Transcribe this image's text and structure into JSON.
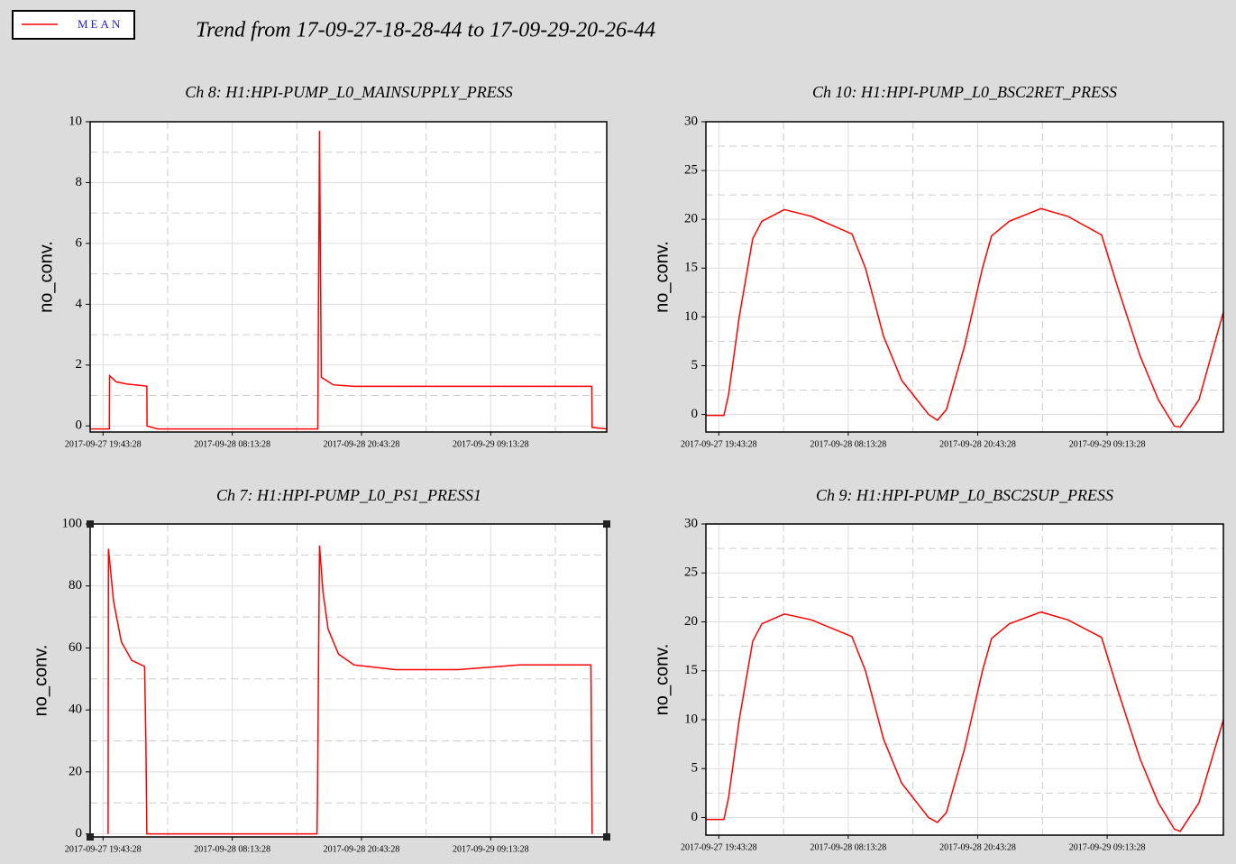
{
  "title": "Trend from 17-09-27-18-28-44 to 17-09-29-20-26-44",
  "chart_data": [
    {
      "type": "line",
      "title": "Ch 8: H1:HPI-PUMP_L0_MAINSUPPLY_PRESS",
      "y_label": "no_conv.",
      "x": [
        "2017-09-27 18:28:44",
        "2017-09-27 20:20:00",
        "2017-09-27 20:22:00",
        "2017-09-27 21:00:00",
        "2017-09-27 22:00:00",
        "2017-09-27 23:40:00",
        "2017-09-27 23:58:00",
        "2017-09-27 23:59:00",
        "2017-09-28 01:00:00",
        "2017-09-28 16:30:00",
        "2017-09-28 16:40:00",
        "2017-09-28 16:50:00",
        "2017-09-28 18:00:00",
        "2017-09-28 20:00:00",
        "2017-09-29 19:00:00",
        "2017-09-29 19:02:00",
        "2017-09-29 20:26:44"
      ],
      "series": [
        {
          "name": "MEAN",
          "color": "#ff0000",
          "values": [
            -0.1,
            -0.1,
            1.65,
            1.45,
            1.38,
            1.32,
            1.3,
            0,
            -0.1,
            -0.1,
            9.7,
            1.6,
            1.35,
            1.3,
            1.3,
            -0.05,
            -0.1
          ]
        }
      ],
      "xlim": [
        "2017-09-27 18:28:44",
        "2017-09-29 20:26:44"
      ],
      "xticks": [
        "2017-09-27 19:43:28",
        "2017-09-28 08:13:28",
        "2017-09-28 20:43:28",
        "2017-09-29 09:13:28"
      ],
      "ylim": [
        -0.2,
        10
      ],
      "yticks": [
        0,
        2,
        4,
        6,
        8,
        10
      ],
      "grid": true
    },
    {
      "type": "line",
      "title": "Ch 10: H1:HPI-PUMP_L0_BSC2RET_PRESS",
      "y_label": "no_conv.",
      "x": [
        "2017-09-27 18:28:44",
        "2017-09-27 20:13:00",
        "2017-09-27 20:40:00",
        "2017-09-27 21:42:00",
        "2017-09-27 23:00:00",
        "2017-09-27 23:53:00",
        "2017-09-28 02:03:00",
        "2017-09-28 04:40:00",
        "2017-09-28 08:35:00",
        "2017-09-28 09:53:00",
        "2017-09-28 11:38:00",
        "2017-09-28 13:23:00",
        "2017-09-28 15:59:00",
        "2017-09-28 16:50:00",
        "2017-09-28 17:42:00",
        "2017-09-28 19:27:00",
        "2017-09-28 21:11:00",
        "2017-09-28 22:04:00",
        "2017-09-28 23:47:00",
        "2017-09-29 02:50:00",
        "2017-09-29 05:26:00",
        "2017-09-29 08:41:00",
        "2017-09-29 10:15:00",
        "2017-09-29 12:24:00",
        "2017-09-29 14:10:00",
        "2017-09-29 15:43:00",
        "2017-09-29 16:17:00",
        "2017-09-29 18:05:00",
        "2017-09-29 20:26:44"
      ],
      "series": [
        {
          "name": "MEAN",
          "color": "#ff0000",
          "values": [
            -0.1,
            -0.1,
            2,
            10,
            18,
            19.8,
            21,
            20.3,
            18.5,
            15,
            8,
            3.5,
            0,
            -0.6,
            0.5,
            7,
            15,
            18.3,
            19.8,
            21.1,
            20.3,
            18.4,
            13,
            6,
            1.5,
            -1.2,
            -1.3,
            1.5,
            10.5
          ]
        }
      ],
      "xlim": [
        "2017-09-27 18:28:44",
        "2017-09-29 20:26:44"
      ],
      "xticks": [
        "2017-09-27 19:43:28",
        "2017-09-28 08:13:28",
        "2017-09-28 20:43:28",
        "2017-09-29 09:13:28"
      ],
      "ylim": [
        -1.8,
        30
      ],
      "yticks": [
        0,
        5,
        10,
        15,
        20,
        25,
        30
      ],
      "grid": true
    },
    {
      "type": "line",
      "title": "Ch 7: H1:HPI-PUMP_L0_PS1_PRESS1",
      "y_label": "no_conv.",
      "x": [
        "2017-09-27 20:13:00",
        "2017-09-27 20:15:00",
        "2017-09-27 20:45:00",
        "2017-09-27 21:30:00",
        "2017-09-27 22:30:00",
        "2017-09-27 23:45:00",
        "2017-09-27 23:52:00",
        "2017-09-27 23:58:00",
        "2017-09-28 16:25:00",
        "2017-09-28 16:28:00",
        "2017-09-28 16:40:00",
        "2017-09-28 17:00:00",
        "2017-09-28 17:30:00",
        "2017-09-28 18:30:00",
        "2017-09-28 20:00:00",
        "2017-09-29 00:00:00",
        "2017-09-29 06:00:00",
        "2017-09-29 12:00:00",
        "2017-09-29 18:55:00",
        "2017-09-29 19:02:00"
      ],
      "series": [
        {
          "name": "MEAN",
          "color": "#ff0000",
          "values": [
            0,
            92,
            75,
            62,
            56,
            54,
            30,
            0,
            0,
            10,
            93,
            78,
            66,
            58,
            54.5,
            53,
            53,
            54.5,
            54.5,
            0
          ]
        }
      ],
      "xlim": [
        "2017-09-27 18:28:44",
        "2017-09-29 20:26:44"
      ],
      "xticks": [
        "2017-09-27 19:43:28",
        "2017-09-28 08:13:28",
        "2017-09-28 20:43:28",
        "2017-09-29 09:13:28"
      ],
      "ylim": [
        -1,
        100
      ],
      "yticks": [
        0,
        20,
        40,
        60,
        80,
        100
      ],
      "grid": true
    },
    {
      "type": "line",
      "title": "Ch 9: H1:HPI-PUMP_L0_BSC2SUP_PRESS",
      "y_label": "no_conv.",
      "x": [
        "2017-09-27 18:28:44",
        "2017-09-27 20:13:00",
        "2017-09-27 20:40:00",
        "2017-09-27 21:42:00",
        "2017-09-27 23:00:00",
        "2017-09-27 23:53:00",
        "2017-09-28 02:03:00",
        "2017-09-28 04:40:00",
        "2017-09-28 08:35:00",
        "2017-09-28 09:53:00",
        "2017-09-28 11:38:00",
        "2017-09-28 13:23:00",
        "2017-09-28 15:59:00",
        "2017-09-28 16:50:00",
        "2017-09-28 17:42:00",
        "2017-09-28 19:27:00",
        "2017-09-28 21:11:00",
        "2017-09-28 22:04:00",
        "2017-09-28 23:47:00",
        "2017-09-29 02:50:00",
        "2017-09-29 05:26:00",
        "2017-09-29 08:41:00",
        "2017-09-29 10:15:00",
        "2017-09-29 12:24:00",
        "2017-09-29 14:10:00",
        "2017-09-29 15:43:00",
        "2017-09-29 16:17:00",
        "2017-09-29 18:05:00",
        "2017-09-29 20:26:44"
      ],
      "series": [
        {
          "name": "MEAN",
          "color": "#ff0000",
          "values": [
            -0.2,
            -0.2,
            2,
            10,
            18,
            19.8,
            20.8,
            20.2,
            18.5,
            15,
            8,
            3.5,
            0,
            -0.5,
            0.5,
            7,
            15,
            18.3,
            19.8,
            21,
            20.2,
            18.4,
            13,
            6,
            1.5,
            -1.2,
            -1.4,
            1.5,
            10
          ]
        }
      ],
      "xlim": [
        "2017-09-27 18:28:44",
        "2017-09-29 20:26:44"
      ],
      "xticks": [
        "2017-09-27 19:43:28",
        "2017-09-28 08:13:28",
        "2017-09-28 20:43:28",
        "2017-09-29 09:13:28"
      ],
      "ylim": [
        -1.8,
        30
      ],
      "yticks": [
        0,
        5,
        10,
        15,
        20,
        25,
        30
      ],
      "grid": true
    }
  ]
}
